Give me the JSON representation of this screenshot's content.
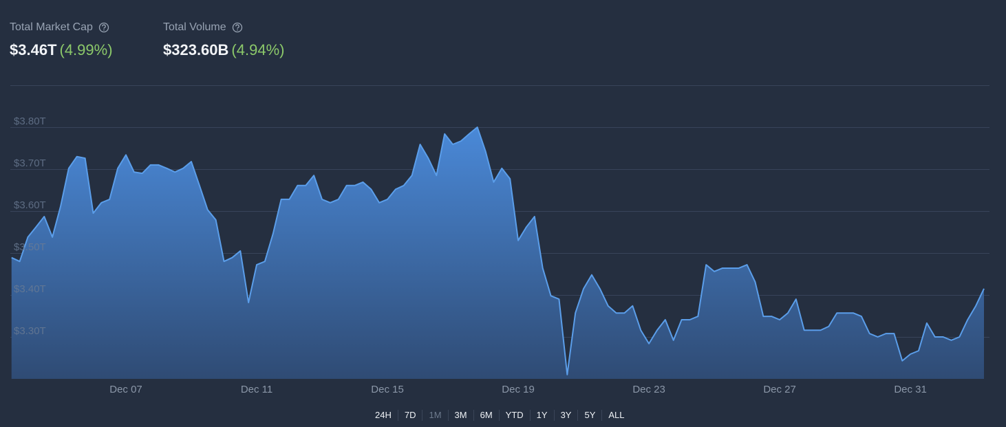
{
  "header": {
    "stats": [
      {
        "label": "Total Market Cap",
        "value": "$3.46T",
        "change": "(4.99%)"
      },
      {
        "label": "Total Volume",
        "value": "$323.60B",
        "change": "(4.94%)"
      }
    ]
  },
  "chart_data": {
    "type": "area",
    "color": "#5b9eea",
    "categories": [
      null,
      null,
      null,
      null,
      null,
      null,
      null,
      null,
      null,
      null,
      null,
      null,
      null,
      null,
      "Dec 07",
      null,
      null,
      null,
      null,
      null,
      null,
      null,
      null,
      null,
      null,
      null,
      null,
      null,
      null,
      null,
      "Dec 11",
      null,
      null,
      null,
      null,
      null,
      null,
      null,
      null,
      null,
      null,
      null,
      null,
      null,
      null,
      null,
      "Dec 15",
      null,
      null,
      null,
      null,
      null,
      null,
      null,
      null,
      null,
      null,
      null,
      null,
      null,
      null,
      null,
      "Dec 19",
      null,
      null,
      null,
      null,
      null,
      null,
      null,
      null,
      null,
      null,
      null,
      null,
      null,
      null,
      null,
      "Dec 23",
      null,
      null,
      null,
      null,
      null,
      null,
      null,
      null,
      null,
      null,
      null,
      null,
      null,
      null,
      null,
      "Dec 27",
      null,
      null,
      null,
      null,
      null,
      null,
      null,
      null,
      null,
      null,
      null,
      null,
      null,
      null,
      null,
      "Dec 31",
      null,
      null,
      null,
      null,
      null,
      null,
      null,
      null,
      null
    ],
    "values": [
      3.489,
      3.48,
      3.538,
      3.562,
      3.587,
      3.538,
      3.611,
      3.702,
      3.73,
      3.726,
      3.595,
      3.62,
      3.628,
      3.702,
      3.734,
      3.693,
      3.69,
      3.71,
      3.71,
      3.702,
      3.693,
      3.702,
      3.718,
      3.661,
      3.603,
      3.579,
      3.48,
      3.489,
      3.505,
      3.382,
      3.472,
      3.48,
      3.546,
      3.628,
      3.628,
      3.661,
      3.661,
      3.685,
      3.628,
      3.62,
      3.628,
      3.661,
      3.661,
      3.669,
      3.652,
      3.62,
      3.628,
      3.652,
      3.661,
      3.685,
      3.759,
      3.726,
      3.685,
      3.784,
      3.759,
      3.767,
      3.784,
      3.8,
      3.743,
      3.669,
      3.702,
      3.677,
      3.53,
      3.562,
      3.587,
      3.464,
      3.398,
      3.39,
      3.21,
      3.357,
      3.415,
      3.448,
      3.415,
      3.374,
      3.357,
      3.357,
      3.374,
      3.316,
      3.284,
      3.316,
      3.341,
      3.292,
      3.341,
      3.341,
      3.349,
      3.472,
      3.456,
      3.464,
      3.464,
      3.464,
      3.472,
      3.431,
      3.349,
      3.349,
      3.341,
      3.357,
      3.39,
      3.316,
      3.316,
      3.316,
      3.325,
      3.357,
      3.357,
      3.357,
      3.349,
      3.308,
      3.3,
      3.308,
      3.308,
      3.243,
      3.259,
      3.267,
      3.333,
      3.3,
      3.3,
      3.292,
      3.3,
      3.341,
      3.374,
      3.415
    ],
    "ylim": [
      3.2,
      3.9
    ],
    "yticks": [
      {
        "value": 3.3,
        "label": "$3.30T"
      },
      {
        "value": 3.4,
        "label": "$3.40T"
      },
      {
        "value": 3.5,
        "label": "$3.50T"
      },
      {
        "value": 3.6,
        "label": "$3.60T"
      },
      {
        "value": 3.7,
        "label": "$3.70T"
      },
      {
        "value": 3.8,
        "label": "$3.80T"
      }
    ],
    "grid": true
  },
  "range_buttons": {
    "items": [
      "24H",
      "7D",
      "1M",
      "3M",
      "6M",
      "YTD",
      "1Y",
      "3Y",
      "5Y",
      "ALL"
    ],
    "selected": "1M"
  }
}
